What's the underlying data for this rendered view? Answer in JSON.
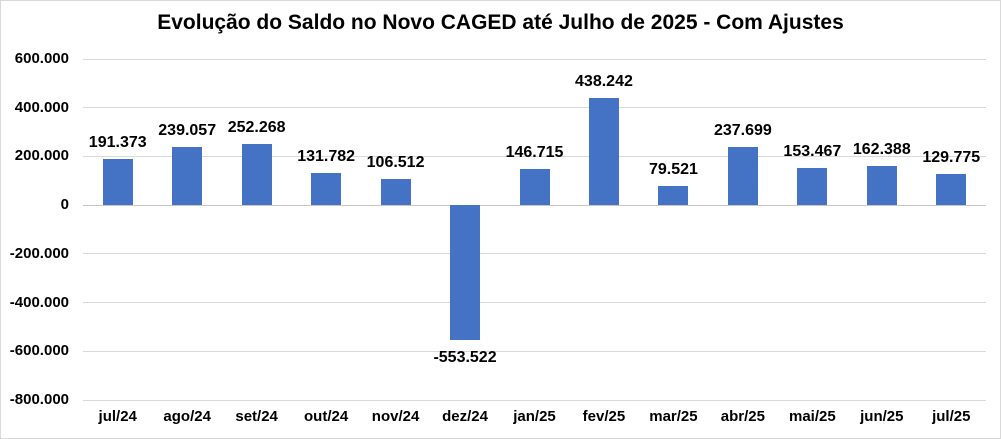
{
  "chart_data": {
    "type": "bar",
    "title": "Evolução do Saldo no Novo CAGED até Julho de 2025 - Com Ajustes",
    "categories": [
      "jul/24",
      "ago/24",
      "set/24",
      "out/24",
      "nov/24",
      "dez/24",
      "jan/25",
      "fev/25",
      "mar/25",
      "abr/25",
      "mai/25",
      "jun/25",
      "jul/25"
    ],
    "values": [
      191373,
      239057,
      252268,
      131782,
      106512,
      -553522,
      146715,
      438242,
      79521,
      237699,
      153467,
      162388,
      129775
    ],
    "value_labels": [
      "191.373",
      "239.057",
      "252.268",
      "131.782",
      "106.512",
      "-553.522",
      "146.715",
      "438.242",
      "79.521",
      "237.699",
      "153.467",
      "162.388",
      "129.775"
    ],
    "yticks": [
      600000,
      400000,
      200000,
      0,
      -200000,
      -400000,
      -600000,
      -800000
    ],
    "ytick_labels": [
      "600.000",
      "400.000",
      "200.000",
      "0",
      "-200.000",
      "-400.000",
      "-600.000",
      "-800.000"
    ],
    "ylim": [
      -800000,
      600000
    ],
    "xlabel": "",
    "ylabel": "",
    "grid": true,
    "legend": false,
    "bar_color": "#4472C4",
    "gridline_color": "#D9D9D9",
    "axis_line_color": "#C6C6C6",
    "text_color": "#000000",
    "background": "#FFFFFF"
  }
}
